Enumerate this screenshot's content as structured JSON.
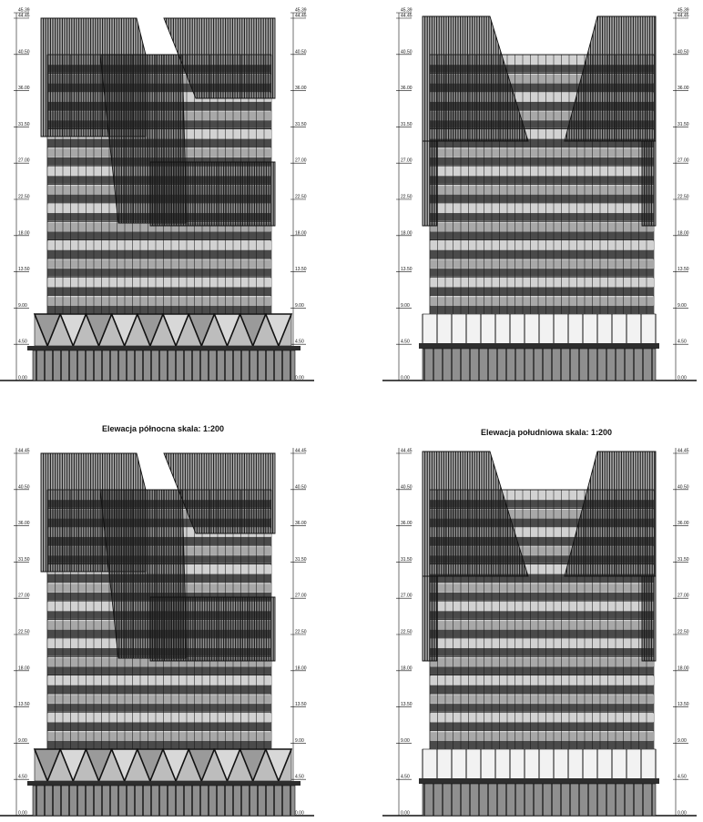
{
  "elevations": [
    {
      "id": "top-left",
      "caption": "",
      "variant": "north",
      "levels": [
        "45.39",
        "44.45",
        "40.50",
        "36.00",
        "31.50",
        "27.00",
        "22.50",
        "18.00",
        "13.50",
        "9.00",
        "4.50",
        "0.00"
      ],
      "levels_right": [
        "45.39",
        "44.45",
        "40.50",
        "36.00",
        "31.50",
        "27.00",
        "22.50",
        "18.00",
        "13.50",
        "9.00",
        "4.50",
        "0.00"
      ]
    },
    {
      "id": "top-right",
      "caption": "",
      "variant": "south",
      "levels": [
        "45.39",
        "44.45",
        "40.50",
        "36.00",
        "31.50",
        "27.00",
        "22.50",
        "18.00",
        "13.50",
        "9.00",
        "4.50",
        "0.00"
      ],
      "levels_right": [
        "45.39",
        "44.45",
        "40.50",
        "36.00",
        "31.50",
        "27.00",
        "22.50",
        "18.00",
        "13.50",
        "9.00",
        "4.50",
        "0.00"
      ]
    },
    {
      "id": "bottom-left",
      "caption": "Elewacja północna skala: 1:200",
      "variant": "north",
      "levels": [
        "44.45",
        "40.50",
        "36.00",
        "31.50",
        "27.00",
        "22.50",
        "18.00",
        "13.50",
        "9.00",
        "4.50",
        "0.00"
      ],
      "levels_right": [
        "44.45",
        "40.50",
        "36.00",
        "31.50",
        "27.00",
        "22.50",
        "18.00",
        "13.50",
        "9.00",
        "4.50",
        "0.00"
      ]
    },
    {
      "id": "bottom-right",
      "caption": "Elewacja południowa skala: 1:200",
      "variant": "south",
      "levels": [
        "44.45",
        "40.50",
        "36.00",
        "31.50",
        "27.00",
        "22.50",
        "18.00",
        "13.50",
        "9.00",
        "4.50",
        "0.00"
      ],
      "levels_right": [
        "44.45",
        "40.50",
        "36.00",
        "31.50",
        "27.00",
        "22.50",
        "18.00",
        "13.50",
        "9.00",
        "4.50",
        "0.00"
      ]
    }
  ],
  "colors": {
    "line": "#111111",
    "glass_light": "#d2d2d2",
    "glass_mid": "#a8a8a8",
    "band_dark": "#4a4a4a",
    "base_dark": "#2e2e2e",
    "louver": "#1a1a1a",
    "lobby_glass": "#f2f2f2"
  }
}
